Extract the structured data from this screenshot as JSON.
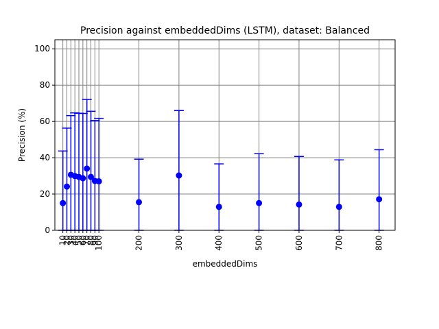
{
  "chart_data": {
    "type": "scatter",
    "title": "Precision against embeddedDims (LSTM), dataset: Balanced",
    "xlabel": "embeddedDims",
    "ylabel": "Precision (%)",
    "xlim": [
      -10,
      840
    ],
    "ylim": [
      0,
      105
    ],
    "grid": true,
    "x_ticks": [
      10,
      20,
      30,
      40,
      50,
      60,
      70,
      80,
      90,
      100,
      200,
      300,
      400,
      500,
      600,
      700,
      800
    ],
    "y_ticks": [
      0,
      20,
      40,
      60,
      80,
      100
    ],
    "colors": {
      "series": "#0000ff",
      "grid": "#808080",
      "axes": "#000000"
    },
    "series": [
      {
        "x": [
          10,
          20,
          30,
          40,
          50,
          60,
          70,
          80,
          90,
          100,
          200,
          300,
          400,
          500,
          600,
          700,
          800
        ],
        "y": [
          15.0,
          24.1,
          30.6,
          29.9,
          29.4,
          28.7,
          34.0,
          29.4,
          27.2,
          27.0,
          15.5,
          30.2,
          12.9,
          15.0,
          14.2,
          12.9,
          17.1
        ],
        "y_upper": [
          43.7,
          56.3,
          63.2,
          64.7,
          64.5,
          64.4,
          72.1,
          65.6,
          60.5,
          61.7,
          39.2,
          66.0,
          36.6,
          42.2,
          40.7,
          38.8,
          44.4
        ],
        "y_lower": [
          0,
          0,
          0,
          0,
          0,
          0,
          0,
          0,
          0,
          0,
          0,
          0,
          0,
          0,
          0,
          0,
          0
        ]
      }
    ]
  }
}
